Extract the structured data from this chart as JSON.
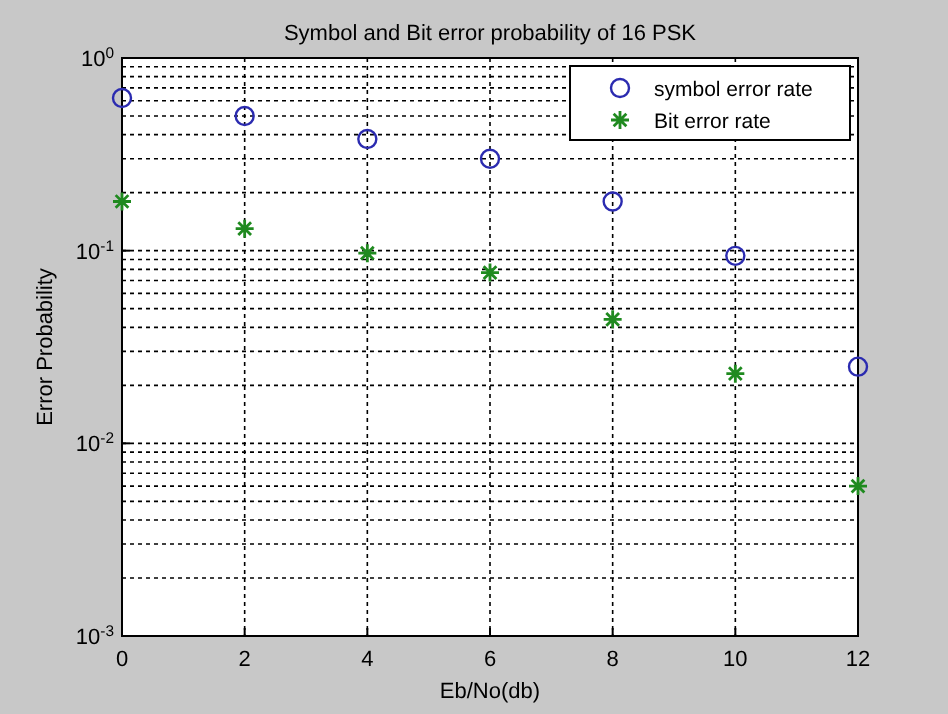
{
  "chart_data": {
    "type": "scatter",
    "title": "Symbol and Bit error probability of 16 PSK",
    "xlabel": "Eb/No(db)",
    "ylabel": "Error Probability",
    "x": [
      0,
      2,
      4,
      6,
      8,
      10,
      12
    ],
    "series": [
      {
        "name": "symbol error rate",
        "color": "#2b2bb0",
        "marker": "circle",
        "values": [
          0.62,
          0.5,
          0.38,
          0.3,
          0.18,
          0.094,
          0.025
        ]
      },
      {
        "name": "Bit error rate",
        "color": "#1f8a1f",
        "marker": "cross",
        "values": [
          0.18,
          0.13,
          0.097,
          0.077,
          0.044,
          0.023,
          0.006
        ]
      }
    ],
    "xlim": [
      0,
      12
    ],
    "xticks": [
      0,
      2,
      4,
      6,
      8,
      10,
      12
    ],
    "ylim": [
      0.001,
      1
    ],
    "yticks": [
      {
        "value": 0.001,
        "label": "10$^{-3}$"
      },
      {
        "value": 0.01,
        "label": "10$^{-2}$"
      },
      {
        "value": 0.1,
        "label": "10$^{-1}$"
      },
      {
        "value": 1,
        "label": "10$^{0}$"
      }
    ],
    "log": "y",
    "grid": true,
    "legend": "top right"
  }
}
